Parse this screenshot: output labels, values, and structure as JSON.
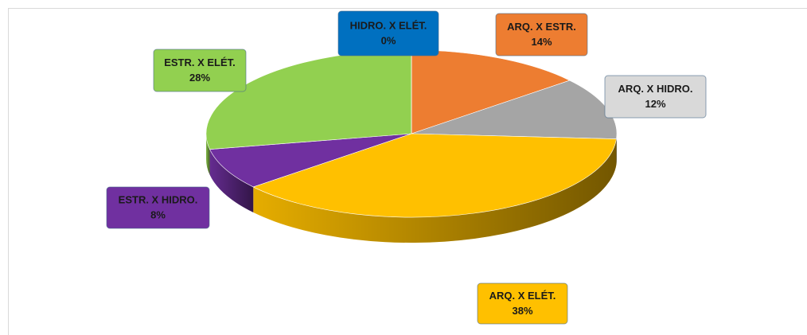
{
  "chart_data": {
    "type": "pie",
    "categories": [
      "ARQ. X ESTR.",
      "ARQ. X HIDRO.",
      "ARQ. X ELÉT.",
      "ESTR. X HIDRO.",
      "ESTR. X ELÉT.",
      "HIDRO. X ELÉT."
    ],
    "values": [
      14,
      12,
      38,
      8,
      28,
      0
    ],
    "value_labels": [
      "14%",
      "12%",
      "38%",
      "8%",
      "28%",
      "0%"
    ],
    "colors": [
      "#ED7D31",
      "#A5A5A5",
      "#FFC000",
      "#7030A0",
      "#92D050",
      "#0070C0"
    ]
  }
}
